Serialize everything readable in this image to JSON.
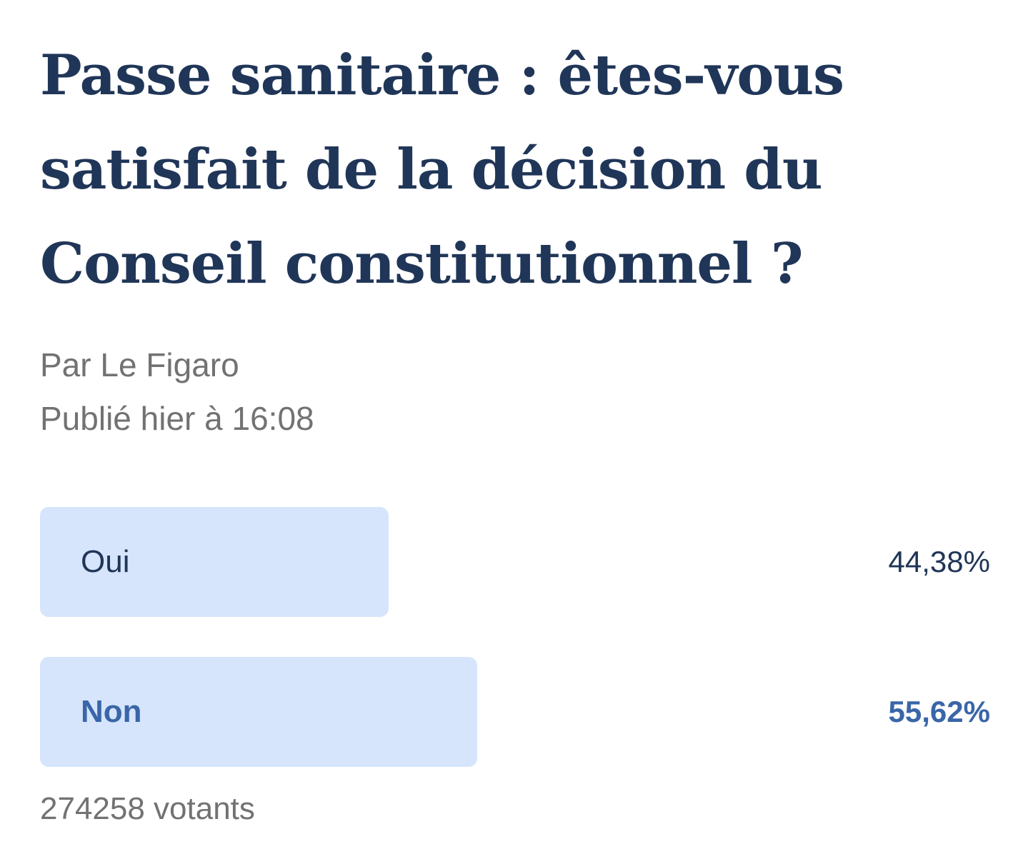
{
  "poll": {
    "title": "Passe sanitaire : êtes-vous satisfait de la décision du Conseil constitutionnel ?",
    "author": "Par Le Figaro",
    "published": "Publié hier à 16:08",
    "options": [
      {
        "label": "Oui",
        "percent_text": "44,38%",
        "percent": 44.38,
        "selected": false
      },
      {
        "label": "Non",
        "percent_text": "55,62%",
        "percent": 55.62,
        "selected": true
      }
    ],
    "voters": "274258 votants"
  },
  "colors": {
    "title": "#203658",
    "meta": "#727272",
    "bar_fill": "#d6e5fb",
    "selected_text": "#3a66a8",
    "default_text": "#203658"
  }
}
